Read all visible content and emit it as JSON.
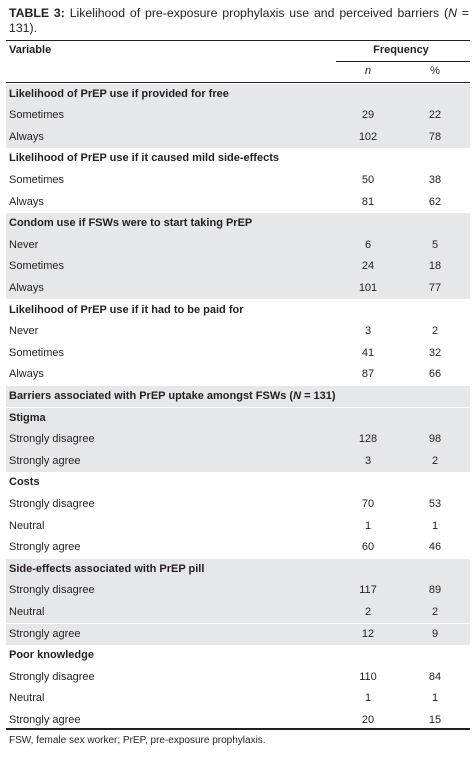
{
  "title": {
    "label": "TABLE 3:",
    "parts": [
      "Likelihood of pre-exposure prophylaxis use and perceived barriers (",
      "N",
      " = 131)."
    ]
  },
  "table": {
    "header": {
      "variable": "Variable",
      "frequency": "Frequency",
      "n": "n",
      "percent": "%"
    },
    "rows": [
      {
        "label": "Likelihood of PrEP use if provided for free"
      },
      {
        "label": "Sometimes",
        "n": 29,
        "percent": 22
      },
      {
        "label": "Always",
        "n": 102,
        "percent": 78
      },
      {
        "label": "Likelihood of PrEP use if it caused mild side-effects"
      },
      {
        "label": "Sometimes",
        "n": 50,
        "percent": 38
      },
      {
        "label": "Always",
        "n": 81,
        "percent": 62
      },
      {
        "label": "Condom use if FSWs were to start taking PrEP"
      },
      {
        "label": "Never",
        "n": 6,
        "percent": 5
      },
      {
        "label": "Sometimes",
        "n": 24,
        "percent": 18
      },
      {
        "label": "Always",
        "n": 101,
        "percent": 77
      },
      {
        "label": "Likelihood of PrEP use if it had to be paid for"
      },
      {
        "label": "Never",
        "n": 3,
        "percent": 2
      },
      {
        "label": "Sometimes",
        "n": 41,
        "percent": 32
      },
      {
        "label": "Always",
        "n": 87,
        "percent": 66
      },
      {
        "label": [
          "Barriers associated with PrEP uptake amongst FSWs (",
          "N",
          " = 131)"
        ]
      },
      {
        "label": "Stigma"
      },
      {
        "label": "Strongly disagree",
        "n": 128,
        "percent": 98
      },
      {
        "label": "Strongly agree",
        "n": 3,
        "percent": 2
      },
      {
        "label": "Costs"
      },
      {
        "label": "Strongly disagree",
        "n": 70,
        "percent": 53
      },
      {
        "label": "Neutral",
        "n": 1,
        "percent": 1
      },
      {
        "label": "Strongly agree",
        "n": 60,
        "percent": 46
      },
      {
        "label": "Side-effects associated with PrEP pill"
      },
      {
        "label": "Strongly disagree",
        "n": 117,
        "percent": 89
      },
      {
        "label": "Neutral",
        "n": 2,
        "percent": 2
      },
      {
        "label": "Strongly agree",
        "n": 12,
        "percent": 9
      },
      {
        "label": "Poor knowledge"
      },
      {
        "label": "Strongly disagree",
        "n": 110,
        "percent": 84
      },
      {
        "label": "Neutral",
        "n": 1,
        "percent": 1
      },
      {
        "label": "Strongly agree",
        "n": 20,
        "percent": 15
      }
    ]
  },
  "footnote": "FSW, female sex worker; PrEP, pre-exposure prophylaxis."
}
